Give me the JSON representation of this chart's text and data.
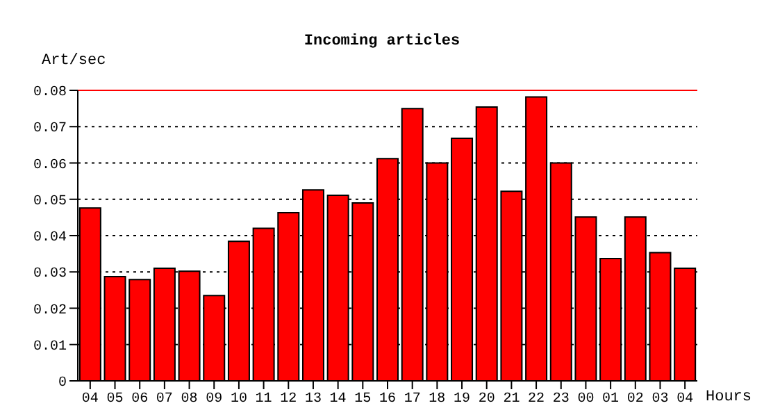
{
  "chart_data": {
    "type": "bar",
    "title": "Incoming articles",
    "xlabel": "Hours",
    "ylabel": "Art/sec",
    "categories": [
      "04",
      "05",
      "06",
      "07",
      "08",
      "09",
      "10",
      "11",
      "12",
      "13",
      "14",
      "15",
      "16",
      "17",
      "18",
      "19",
      "20",
      "21",
      "22",
      "23",
      "00",
      "01",
      "02",
      "03",
      "04"
    ],
    "values": [
      0.0476,
      0.0287,
      0.0279,
      0.031,
      0.0302,
      0.0235,
      0.0384,
      0.042,
      0.0463,
      0.0526,
      0.0511,
      0.049,
      0.0612,
      0.075,
      0.06,
      0.0668,
      0.0754,
      0.0522,
      0.0782,
      0.06,
      0.0451,
      0.0337,
      0.0451,
      0.0353,
      0.031
    ],
    "color": "#ff0000",
    "ylim": [
      0,
      0.08
    ],
    "yticks": [
      0,
      0.01,
      0.02,
      0.03,
      0.04,
      0.05,
      0.06,
      0.07,
      0.08
    ],
    "grid": "y",
    "ref_lines": [
      {
        "axis": "y",
        "value": 0.08,
        "color": "#ff0000"
      }
    ]
  }
}
